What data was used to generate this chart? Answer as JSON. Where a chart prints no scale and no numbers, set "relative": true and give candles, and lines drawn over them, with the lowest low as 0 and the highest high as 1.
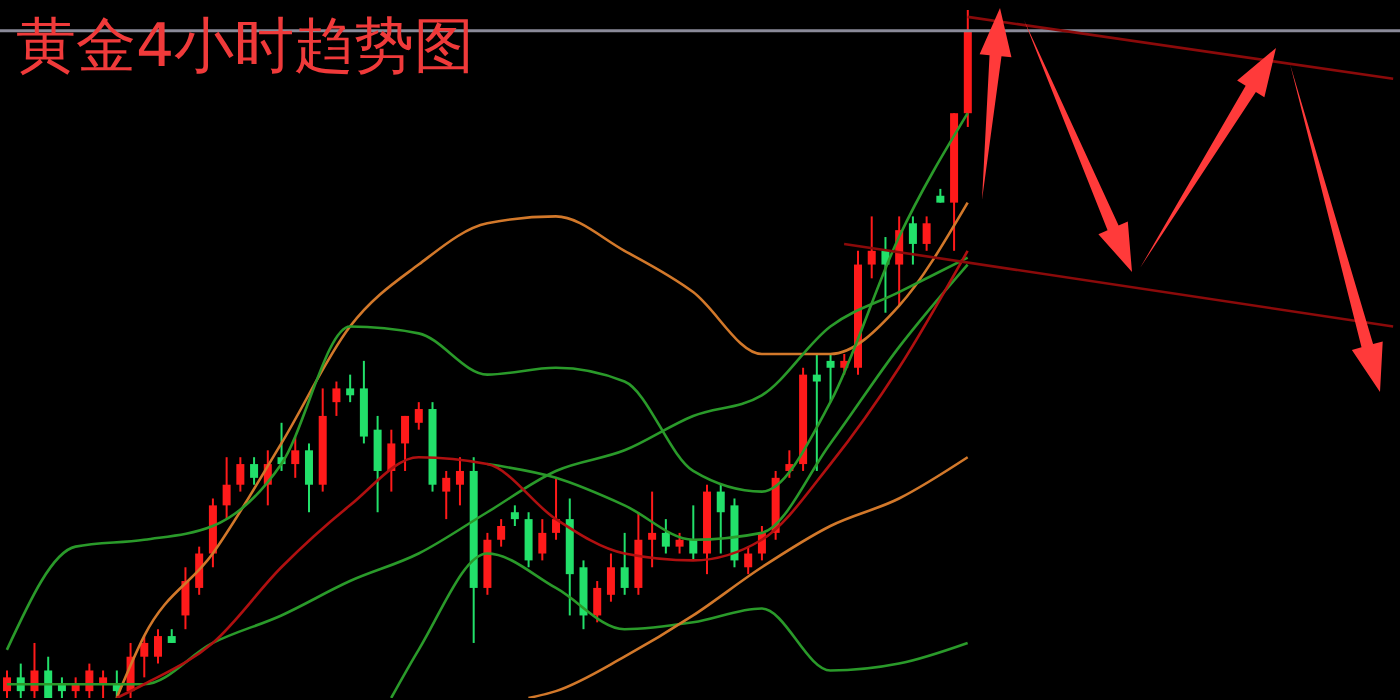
{
  "chart_data": {
    "type": "candlestick",
    "title": "黄金4小时趋势图",
    "relative": true,
    "categories": [
      null,
      null,
      null,
      null,
      null,
      null,
      null,
      null,
      null,
      null,
      null,
      null,
      null,
      null,
      null,
      null,
      null,
      null,
      null,
      null,
      null,
      null,
      null,
      null,
      null,
      null,
      null,
      null,
      null,
      null,
      null,
      null,
      null,
      null,
      null,
      null,
      null,
      null,
      null,
      null,
      null,
      null,
      null,
      null,
      null,
      null,
      null,
      null,
      null,
      null,
      null,
      null,
      null,
      null,
      null,
      null,
      null,
      null,
      null,
      null,
      null,
      null,
      null,
      null,
      null,
      null,
      null,
      null,
      null,
      null,
      null,
      null,
      null,
      null,
      null,
      null,
      null,
      null,
      null,
      null,
      null,
      null,
      null,
      null,
      null,
      null,
      null,
      null,
      null,
      null,
      null,
      null,
      null,
      null,
      null,
      null,
      null,
      null,
      null,
      null,
      null,
      null
    ],
    "ohlc": [
      [
        0.01,
        0.04,
        0,
        0.03
      ],
      [
        0.03,
        0.05,
        0,
        0.01
      ],
      [
        0.01,
        0.08,
        0,
        0.04
      ],
      [
        0.04,
        0.06,
        0,
        0
      ],
      [
        0.02,
        0.03,
        0,
        0.01
      ],
      [
        0.01,
        0.03,
        0,
        0.02
      ],
      [
        0.01,
        0.05,
        0,
        0.04
      ],
      [
        0.02,
        0.04,
        0,
        0.03
      ],
      [
        0.02,
        0.04,
        0,
        0.01
      ],
      [
        0.01,
        0.08,
        0,
        0.06
      ],
      [
        0.06,
        0.09,
        0.03,
        0.08
      ],
      [
        0.06,
        0.1,
        0.05,
        0.09
      ],
      [
        0.09,
        0.1,
        0.08,
        0.08
      ],
      [
        0.12,
        0.19,
        0.1,
        0.17
      ],
      [
        0.16,
        0.22,
        0.15,
        0.21
      ],
      [
        0.21,
        0.29,
        0.19,
        0.28
      ],
      [
        0.28,
        0.35,
        0.26,
        0.31
      ],
      [
        0.31,
        0.35,
        0.3,
        0.34
      ],
      [
        0.34,
        0.35,
        0.31,
        0.32
      ],
      [
        0.31,
        0.36,
        0.28,
        0.34
      ],
      [
        0.35,
        0.4,
        0.33,
        0.34
      ],
      [
        0.34,
        0.38,
        0.32,
        0.36
      ],
      [
        0.36,
        0.37,
        0.27,
        0.31
      ],
      [
        0.31,
        0.45,
        0.3,
        0.41
      ],
      [
        0.43,
        0.46,
        0.41,
        0.45
      ],
      [
        0.45,
        0.47,
        0.43,
        0.44
      ],
      [
        0.45,
        0.49,
        0.37,
        0.38
      ],
      [
        0.39,
        0.41,
        0.27,
        0.33
      ],
      [
        0.33,
        0.39,
        0.3,
        0.37
      ],
      [
        0.37,
        0.41,
        0.33,
        0.41
      ],
      [
        0.4,
        0.43,
        0.39,
        0.42
      ],
      [
        0.42,
        0.43,
        0.3,
        0.31
      ],
      [
        0.3,
        0.33,
        0.26,
        0.32
      ],
      [
        0.31,
        0.35,
        0.28,
        0.33
      ],
      [
        0.33,
        0.35,
        0.08,
        0.16
      ],
      [
        0.16,
        0.24,
        0.15,
        0.23
      ],
      [
        0.23,
        0.26,
        0.22,
        0.25
      ],
      [
        0.27,
        0.28,
        0.25,
        0.26
      ],
      [
        0.26,
        0.27,
        0.19,
        0.2
      ],
      [
        0.21,
        0.26,
        0.2,
        0.24
      ],
      [
        0.24,
        0.32,
        0.23,
        0.26
      ],
      [
        0.26,
        0.29,
        0.12,
        0.18
      ],
      [
        0.19,
        0.2,
        0.1,
        0.12
      ],
      [
        0.12,
        0.17,
        0.11,
        0.16
      ],
      [
        0.15,
        0.21,
        0.14,
        0.19
      ],
      [
        0.19,
        0.24,
        0.15,
        0.16
      ],
      [
        0.16,
        0.27,
        0.15,
        0.23
      ],
      [
        0.23,
        0.3,
        0.19,
        0.24
      ],
      [
        0.24,
        0.26,
        0.21,
        0.22
      ],
      [
        0.22,
        0.24,
        0.21,
        0.23
      ],
      [
        0.23,
        0.28,
        0.2,
        0.21
      ],
      [
        0.21,
        0.31,
        0.18,
        0.3
      ],
      [
        0.3,
        0.31,
        0.21,
        0.27
      ],
      [
        0.28,
        0.29,
        0.19,
        0.2
      ],
      [
        0.19,
        0.22,
        0.18,
        0.21
      ],
      [
        0.21,
        0.25,
        0.2,
        0.24
      ],
      [
        0.24,
        0.33,
        0.23,
        0.32
      ],
      [
        0.33,
        0.36,
        0.32,
        0.34
      ],
      [
        0.34,
        0.48,
        0.33,
        0.47
      ],
      [
        0.47,
        0.5,
        0.33,
        0.46
      ],
      [
        0.49,
        0.5,
        0.43,
        0.48
      ],
      [
        0.48,
        0.5,
        0.47,
        0.49
      ],
      [
        0.48,
        0.65,
        0.47,
        0.63
      ],
      [
        0.63,
        0.7,
        0.61,
        0.65
      ],
      [
        0.65,
        0.67,
        0.56,
        0.63
      ],
      [
        0.63,
        0.7,
        0.57,
        0.68
      ],
      [
        0.69,
        0.7,
        0.63,
        0.66
      ],
      [
        0.66,
        0.7,
        0.65,
        0.69
      ],
      [
        0.73,
        0.74,
        0.72,
        0.72
      ],
      [
        0.72,
        0.85,
        0.65,
        0.85
      ],
      [
        0.85,
        1,
        0.83,
        0.97
      ],
      null,
      null,
      null,
      null,
      null,
      null,
      null,
      null,
      null,
      null,
      null,
      null,
      null,
      null,
      null,
      null,
      null,
      null,
      null,
      null,
      null,
      null,
      null,
      null,
      null,
      null,
      null,
      null,
      null,
      null,
      null
    ],
    "colors": [
      "#ff1a1a",
      "#22e06a",
      "#ff1a1a",
      "#22e06a",
      "#22e06a",
      "#ff1a1a",
      "#ff1a1a",
      "#ff1a1a",
      "#22e06a",
      "#ff1a1a",
      "#ff1a1a",
      "#ff1a1a",
      "#22e06a",
      "#ff1a1a",
      "#ff1a1a",
      "#ff1a1a",
      "#ff1a1a",
      "#ff1a1a",
      "#22e06a",
      "#ff1a1a",
      "#22e06a",
      "#ff1a1a",
      "#22e06a",
      "#ff1a1a",
      "#ff1a1a",
      "#22e06a",
      "#22e06a",
      "#22e06a",
      "#ff1a1a",
      "#ff1a1a",
      "#ff1a1a",
      "#22e06a",
      "#ff1a1a",
      "#ff1a1a",
      "#22e06a",
      "#ff1a1a",
      "#ff1a1a",
      "#22e06a",
      "#22e06a",
      "#ff1a1a",
      "#ff1a1a",
      "#22e06a",
      "#22e06a",
      "#ff1a1a",
      "#ff1a1a",
      "#22e06a",
      "#ff1a1a",
      "#ff1a1a",
      "#22e06a",
      "#ff1a1a",
      "#22e06a",
      "#ff1a1a",
      "#22e06a",
      "#22e06a",
      "#ff1a1a",
      "#ff1a1a",
      "#ff1a1a",
      "#ff1a1a",
      "#ff1a1a",
      "#22e06a",
      "#22e06a",
      "#ff1a1a",
      "#ff1a1a",
      "#ff1a1a",
      "#22e06a",
      "#ff1a1a",
      "#22e06a",
      "#ff1a1a",
      "#22e06a",
      "#ff1a1a",
      "#ff1a1a",
      null,
      null,
      null,
      null,
      null,
      null,
      null,
      null,
      null,
      null,
      null,
      null,
      null,
      null,
      null,
      null,
      null,
      null,
      null,
      null,
      null,
      null,
      null,
      null,
      null,
      null,
      null,
      null,
      null,
      null,
      null
    ],
    "series": [
      {
        "type": "line",
        "color": "#d2782a",
        "values": [
          null,
          null,
          null,
          null,
          null,
          null,
          null,
          null,
          0,
          null,
          0.09,
          null,
          null,
          null,
          null,
          0.21,
          null,
          null,
          null,
          null,
          0.37,
          null,
          null,
          null,
          null,
          0.54,
          null,
          null,
          null,
          null,
          0.63,
          null,
          null,
          null,
          null,
          0.69,
          null,
          null,
          null,
          null,
          0.7,
          null,
          null,
          null,
          null,
          0.65,
          null,
          null,
          null,
          null,
          0.59,
          null,
          null,
          null,
          null,
          0.5,
          null,
          null,
          null,
          null,
          0.5,
          null,
          null,
          null,
          null,
          0.57,
          null,
          null,
          null,
          null,
          0.72,
          null,
          null,
          null,
          null,
          null,
          null,
          null,
          null,
          null,
          null,
          null,
          null,
          null,
          null,
          null,
          null,
          null,
          null,
          null,
          null,
          null,
          null,
          null,
          null,
          null,
          null,
          null,
          null,
          null,
          null,
          null
        ]
      },
      {
        "type": "line",
        "color": "#2a9a2a",
        "values": [
          0.07,
          null,
          null,
          null,
          null,
          0.22,
          null,
          null,
          null,
          null,
          0.23,
          null,
          null,
          null,
          null,
          0.25,
          null,
          null,
          null,
          null,
          0.34,
          null,
          null,
          null,
          null,
          0.54,
          null,
          null,
          null,
          null,
          0.53,
          null,
          null,
          null,
          null,
          0.47,
          null,
          null,
          null,
          null,
          0.48,
          null,
          null,
          null,
          null,
          0.46,
          null,
          null,
          null,
          null,
          0.33,
          null,
          null,
          null,
          null,
          0.3,
          null,
          null,
          null,
          null,
          0.43,
          null,
          null,
          null,
          null,
          0.67,
          null,
          null,
          null,
          null,
          0.85,
          null,
          null,
          null,
          null,
          null,
          null,
          null,
          null,
          null,
          null,
          null,
          null,
          null,
          null,
          null,
          null,
          null,
          null,
          null,
          null,
          null,
          null,
          null,
          null,
          null,
          null,
          null,
          null,
          null,
          null,
          null
        ]
      },
      {
        "type": "line",
        "color": "#2a9a2a",
        "values": [
          null,
          null,
          null,
          null,
          null,
          null,
          null,
          null,
          null,
          null,
          null,
          null,
          null,
          null,
          null,
          null,
          null,
          null,
          null,
          null,
          null,
          null,
          null,
          null,
          null,
          null,
          null,
          null,
          0,
          null,
          0.07,
          null,
          null,
          null,
          null,
          0.21,
          null,
          null,
          null,
          null,
          0.16,
          null,
          null,
          null,
          null,
          0.1,
          null,
          null,
          null,
          null,
          0.11,
          null,
          null,
          null,
          null,
          0.13,
          null,
          null,
          null,
          null,
          0.04,
          null,
          null,
          null,
          null,
          0.05,
          null,
          null,
          null,
          null,
          0.08,
          null,
          null,
          null,
          null,
          null,
          null,
          null,
          null,
          null,
          null,
          null,
          null,
          null,
          null,
          null,
          null,
          null,
          null,
          null,
          null,
          null,
          null,
          null,
          null,
          null,
          null,
          null,
          null,
          null,
          null,
          null
        ]
      },
      {
        "type": "line",
        "color": "#2a9a2a",
        "values": [
          0.02,
          null,
          null,
          null,
          null,
          0.02,
          null,
          null,
          null,
          null,
          0.02,
          null,
          null,
          null,
          null,
          0.08,
          null,
          null,
          null,
          null,
          0.12,
          null,
          null,
          null,
          null,
          0.17,
          null,
          null,
          null,
          null,
          0.21,
          null,
          null,
          null,
          null,
          0.27,
          null,
          null,
          null,
          null,
          0.33,
          null,
          null,
          null,
          null,
          0.36,
          null,
          null,
          null,
          null,
          0.41,
          null,
          null,
          null,
          null,
          0.44,
          null,
          null,
          null,
          null,
          0.54,
          null,
          null,
          null,
          null,
          0.59,
          null,
          null,
          null,
          null,
          0.64,
          null,
          null,
          null,
          null,
          null,
          null,
          null,
          null,
          null,
          null,
          null,
          null,
          null,
          null,
          null,
          null,
          null,
          null,
          null,
          null,
          null,
          null,
          null,
          null,
          null,
          null,
          null,
          null,
          null,
          null,
          null
        ]
      },
      {
        "type": "line",
        "color": "#2a9a2a",
        "values": [
          null,
          null,
          null,
          null,
          null,
          null,
          null,
          null,
          null,
          null,
          null,
          null,
          null,
          null,
          null,
          null,
          null,
          null,
          null,
          null,
          null,
          null,
          null,
          null,
          null,
          null,
          null,
          null,
          null,
          null,
          null,
          null,
          null,
          null,
          null,
          0.34,
          null,
          null,
          null,
          null,
          0.32,
          null,
          null,
          null,
          null,
          0.28,
          null,
          null,
          null,
          null,
          0.23,
          null,
          null,
          null,
          null,
          0.24,
          null,
          null,
          null,
          null,
          0.37,
          null,
          null,
          null,
          null,
          0.51,
          null,
          null,
          null,
          null,
          0.63,
          null,
          null,
          null,
          null,
          null,
          null,
          null,
          null,
          null,
          null,
          null,
          null,
          null,
          null,
          null,
          null,
          null,
          null,
          null,
          null,
          null,
          null,
          null,
          null,
          null,
          null,
          null,
          null,
          null,
          null,
          null
        ]
      },
      {
        "type": "line",
        "color": "#b01010",
        "values": [
          null,
          null,
          null,
          null,
          null,
          null,
          null,
          null,
          0,
          null,
          0.02,
          null,
          null,
          null,
          null,
          0.08,
          null,
          null,
          null,
          null,
          0.19,
          null,
          null,
          null,
          null,
          0.28,
          null,
          null,
          null,
          null,
          0.35,
          null,
          null,
          null,
          null,
          0.34,
          null,
          null,
          null,
          null,
          0.26,
          null,
          null,
          null,
          null,
          0.21,
          null,
          null,
          null,
          null,
          0.2,
          null,
          null,
          null,
          null,
          0.23,
          null,
          null,
          null,
          null,
          0.34,
          null,
          null,
          null,
          null,
          0.48,
          null,
          null,
          null,
          null,
          0.65,
          null,
          null,
          null,
          null,
          null,
          null,
          null,
          null,
          null,
          null,
          null,
          null,
          null,
          null,
          null,
          null,
          null,
          null,
          null,
          null,
          null,
          null,
          null,
          null,
          null,
          null,
          null,
          null,
          null,
          null,
          null
        ]
      },
      {
        "type": "line",
        "color": "#d2782a",
        "values": [
          null,
          null,
          null,
          null,
          null,
          null,
          null,
          null,
          null,
          null,
          null,
          null,
          null,
          null,
          null,
          null,
          null,
          null,
          null,
          null,
          null,
          null,
          null,
          null,
          null,
          null,
          null,
          null,
          null,
          null,
          null,
          null,
          null,
          null,
          null,
          null,
          null,
          null,
          0,
          null,
          0.01,
          null,
          null,
          null,
          null,
          0.06,
          null,
          null,
          null,
          null,
          0.12,
          null,
          null,
          null,
          null,
          0.19,
          null,
          null,
          null,
          null,
          0.25,
          null,
          null,
          null,
          null,
          0.29,
          null,
          null,
          null,
          null,
          0.35,
          null,
          null,
          null,
          null,
          null,
          null,
          null,
          null,
          null,
          null,
          null,
          null,
          null,
          null,
          null,
          null,
          null,
          null,
          null,
          null,
          null,
          null,
          null,
          null,
          null,
          null,
          null,
          null,
          null,
          null,
          null
        ]
      },
      {
        "type": "line",
        "color": "#8b0a0a",
        "values": [
          null,
          null,
          null,
          null,
          null,
          null,
          null,
          null,
          null,
          null,
          null,
          null,
          null,
          null,
          null,
          null,
          null,
          null,
          null,
          null,
          null,
          null,
          null,
          null,
          null,
          null,
          null,
          null,
          null,
          null,
          null,
          null,
          null,
          null,
          null,
          null,
          null,
          null,
          null,
          null,
          null,
          null,
          null,
          null,
          null,
          null,
          null,
          null,
          null,
          null,
          null,
          null,
          null,
          null,
          null,
          null,
          null,
          null,
          null,
          null,
          null,
          null,
          null,
          null,
          null,
          null,
          null,
          null,
          null,
          null,
          0.99,
          null,
          null,
          null,
          null,
          null,
          null,
          null,
          null,
          null,
          null,
          null,
          null,
          null,
          null,
          null,
          null,
          null,
          null,
          null,
          null,
          null,
          null,
          null,
          null,
          null,
          null,
          null,
          null,
          null,
          null,
          0.9
        ]
      },
      {
        "type": "line",
        "color": "#8b0a0a",
        "values": [
          null,
          null,
          null,
          null,
          null,
          null,
          null,
          null,
          null,
          null,
          null,
          null,
          null,
          null,
          null,
          null,
          null,
          null,
          null,
          null,
          null,
          null,
          null,
          null,
          null,
          null,
          null,
          null,
          null,
          null,
          null,
          null,
          null,
          null,
          null,
          null,
          null,
          null,
          null,
          null,
          null,
          null,
          null,
          null,
          null,
          null,
          null,
          null,
          null,
          null,
          null,
          null,
          null,
          null,
          null,
          null,
          null,
          null,
          null,
          null,
          null,
          0.66,
          null,
          null,
          null,
          null,
          null,
          null,
          null,
          null,
          null,
          null,
          null,
          null,
          null,
          null,
          null,
          null,
          null,
          null,
          null,
          null,
          null,
          null,
          null,
          null,
          null,
          null,
          null,
          null,
          null,
          null,
          null,
          null,
          null,
          null,
          null,
          null,
          null,
          null,
          null,
          0.54
        ]
      }
    ],
    "ref_lines": [
      {
        "axis": "y",
        "value": 0.97,
        "color": "#8a8a99"
      }
    ]
  }
}
